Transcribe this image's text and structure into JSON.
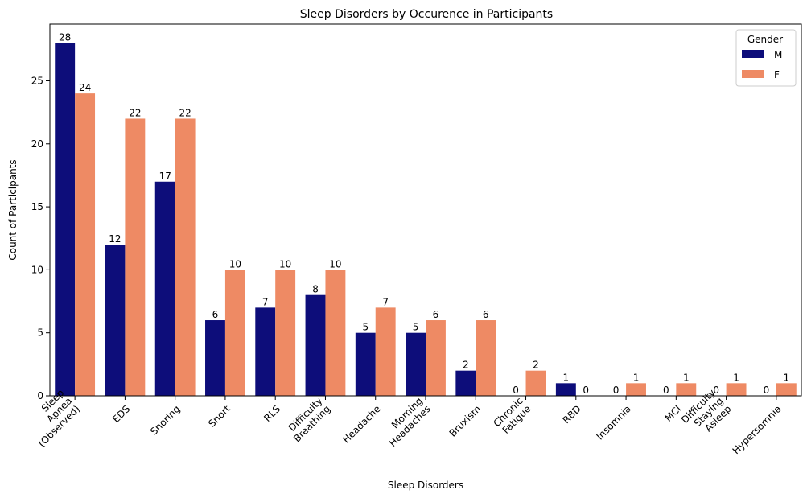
{
  "chart_data": {
    "type": "bar",
    "title": "Sleep Disorders by Occurence in Participants",
    "xlabel": "Sleep Disorders",
    "ylabel": "Count of Participants",
    "ylim": [
      0,
      29.5
    ],
    "yticks": [
      0,
      5,
      10,
      15,
      20,
      25
    ],
    "categories": [
      [
        "Sleep",
        "Apnea",
        "(Observed)"
      ],
      [
        "EDS"
      ],
      [
        "Snoring"
      ],
      [
        "Snort"
      ],
      [
        "RLS"
      ],
      [
        "Difficulty",
        "Breathing"
      ],
      [
        "Headache"
      ],
      [
        "Morning",
        "Headaches"
      ],
      [
        "Bruxism"
      ],
      [
        "Chronic",
        "Fatigue"
      ],
      [
        "RBD"
      ],
      [
        "Insomnia"
      ],
      [
        "MCI"
      ],
      [
        "Difficulty",
        "Staying",
        "Asleep"
      ],
      [
        "Hypersomnia"
      ]
    ],
    "series": [
      {
        "name": "M",
        "color": "#0d0d7a",
        "values": [
          28,
          12,
          17,
          6,
          7,
          8,
          5,
          5,
          2,
          0,
          1,
          0,
          0,
          0,
          0
        ]
      },
      {
        "name": "F",
        "color": "#ee8a64",
        "values": [
          24,
          22,
          22,
          10,
          10,
          10,
          7,
          6,
          6,
          2,
          0,
          1,
          1,
          1,
          1
        ]
      }
    ],
    "legend": {
      "title": "Gender",
      "placement": "top-right"
    },
    "grid": false
  }
}
